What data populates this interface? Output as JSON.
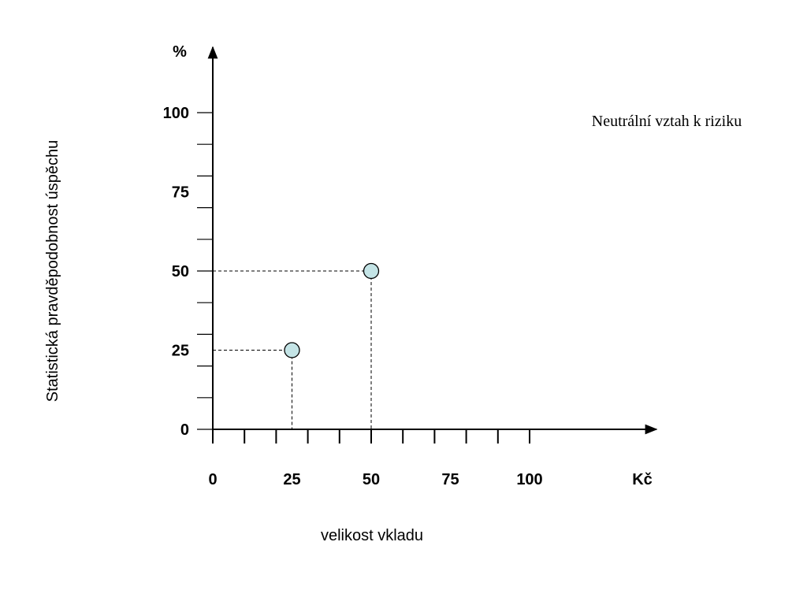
{
  "chart_data": {
    "type": "scatter",
    "title": "",
    "annotation": "Neutrální vztah k riziku",
    "xlabel": "velikost vkladu",
    "ylabel": "Statistická pravděpodobnost úspěchu",
    "x_unit": "Kč",
    "y_unit": "%",
    "xlim": [
      0,
      100
    ],
    "ylim": [
      0,
      100
    ],
    "x_tick_labels": [
      "0",
      "25",
      "50",
      "75",
      "100"
    ],
    "y_tick_labels": [
      "0",
      "25",
      "50",
      "75",
      "100"
    ],
    "x_tick_values": [
      0,
      25,
      50,
      75,
      100
    ],
    "y_tick_values": [
      0,
      25,
      50,
      75,
      100
    ],
    "x_minor_step": 10,
    "y_minor_step": 10,
    "grid": false,
    "guide_lines": "dashed",
    "marker_color": "#c4e4e6",
    "points": [
      {
        "x": 25,
        "y": 25
      },
      {
        "x": 50,
        "y": 50
      }
    ]
  }
}
